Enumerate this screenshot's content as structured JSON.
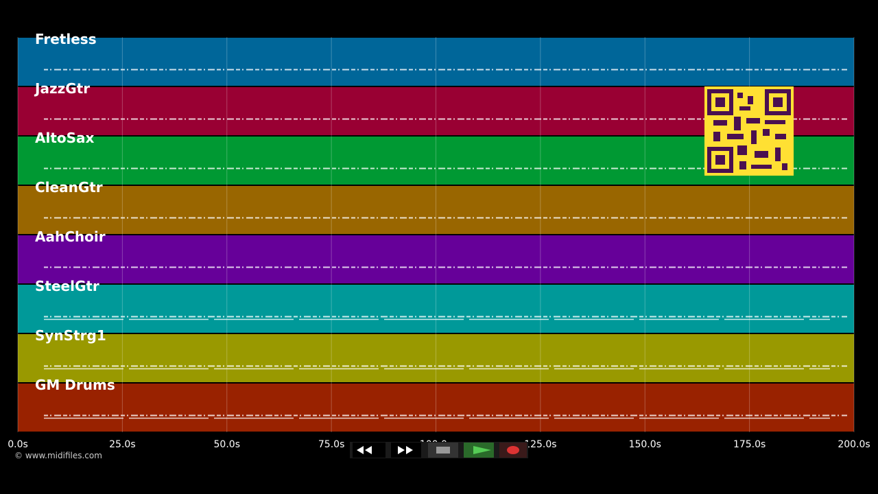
{
  "tracks": [
    {
      "name": "Fretless",
      "color": "#006699"
    },
    {
      "name": "JazzGtr",
      "color": "#990033"
    },
    {
      "name": "AltoSax",
      "color": "#009933"
    },
    {
      "name": "CleanGtr",
      "color": "#996600"
    },
    {
      "name": "AahChoir",
      "color": "#660099"
    },
    {
      "name": "SteelGtr",
      "color": "#009999"
    },
    {
      "name": "SynStrg1",
      "color": "#999900"
    },
    {
      "name": "GM Drums",
      "color": "#992200"
    }
  ],
  "timeline": {
    "range": [
      0,
      200
    ],
    "ticks": [
      {
        "value": 0,
        "label": "0.0s"
      },
      {
        "value": 25,
        "label": "25.0s"
      },
      {
        "value": 50,
        "label": "50.0s"
      },
      {
        "value": 75,
        "label": "75.0s"
      },
      {
        "value": 100,
        "label": "100.0s"
      },
      {
        "value": 125,
        "label": "125.0s"
      },
      {
        "value": 150,
        "label": "150.0s"
      },
      {
        "value": 175,
        "label": "175.0s"
      },
      {
        "value": 200,
        "label": "200.0s"
      }
    ]
  },
  "footer": {
    "copyright": "© www.midifiles.com"
  }
}
